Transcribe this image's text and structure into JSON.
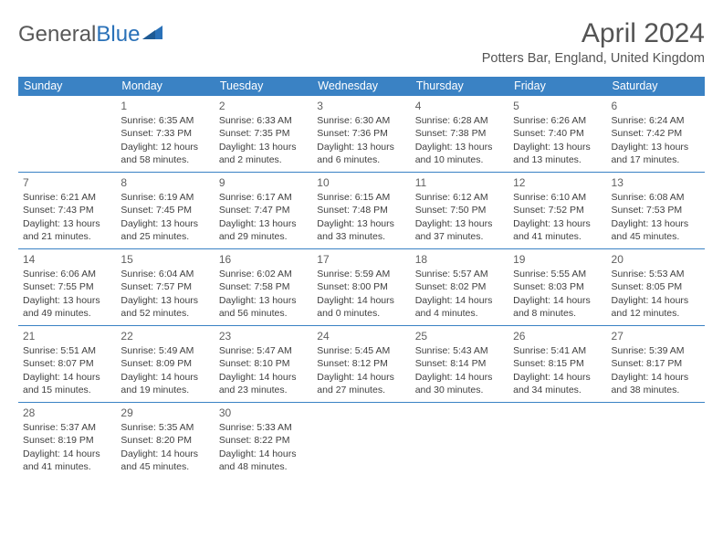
{
  "logo": {
    "text1": "General",
    "text2": "Blue"
  },
  "title": "April 2024",
  "location": "Potters Bar, England, United Kingdom",
  "header_bg": "#3a82c4",
  "header_fg": "#ffffff",
  "border_color": "#3a82c4",
  "text_color": "#404040",
  "title_color": "#545454",
  "days": [
    "Sunday",
    "Monday",
    "Tuesday",
    "Wednesday",
    "Thursday",
    "Friday",
    "Saturday"
  ],
  "weeks": [
    [
      null,
      {
        "n": "1",
        "sr": "Sunrise: 6:35 AM",
        "ss": "Sunset: 7:33 PM",
        "dl": "Daylight: 12 hours and 58 minutes."
      },
      {
        "n": "2",
        "sr": "Sunrise: 6:33 AM",
        "ss": "Sunset: 7:35 PM",
        "dl": "Daylight: 13 hours and 2 minutes."
      },
      {
        "n": "3",
        "sr": "Sunrise: 6:30 AM",
        "ss": "Sunset: 7:36 PM",
        "dl": "Daylight: 13 hours and 6 minutes."
      },
      {
        "n": "4",
        "sr": "Sunrise: 6:28 AM",
        "ss": "Sunset: 7:38 PM",
        "dl": "Daylight: 13 hours and 10 minutes."
      },
      {
        "n": "5",
        "sr": "Sunrise: 6:26 AM",
        "ss": "Sunset: 7:40 PM",
        "dl": "Daylight: 13 hours and 13 minutes."
      },
      {
        "n": "6",
        "sr": "Sunrise: 6:24 AM",
        "ss": "Sunset: 7:42 PM",
        "dl": "Daylight: 13 hours and 17 minutes."
      }
    ],
    [
      {
        "n": "7",
        "sr": "Sunrise: 6:21 AM",
        "ss": "Sunset: 7:43 PM",
        "dl": "Daylight: 13 hours and 21 minutes."
      },
      {
        "n": "8",
        "sr": "Sunrise: 6:19 AM",
        "ss": "Sunset: 7:45 PM",
        "dl": "Daylight: 13 hours and 25 minutes."
      },
      {
        "n": "9",
        "sr": "Sunrise: 6:17 AM",
        "ss": "Sunset: 7:47 PM",
        "dl": "Daylight: 13 hours and 29 minutes."
      },
      {
        "n": "10",
        "sr": "Sunrise: 6:15 AM",
        "ss": "Sunset: 7:48 PM",
        "dl": "Daylight: 13 hours and 33 minutes."
      },
      {
        "n": "11",
        "sr": "Sunrise: 6:12 AM",
        "ss": "Sunset: 7:50 PM",
        "dl": "Daylight: 13 hours and 37 minutes."
      },
      {
        "n": "12",
        "sr": "Sunrise: 6:10 AM",
        "ss": "Sunset: 7:52 PM",
        "dl": "Daylight: 13 hours and 41 minutes."
      },
      {
        "n": "13",
        "sr": "Sunrise: 6:08 AM",
        "ss": "Sunset: 7:53 PM",
        "dl": "Daylight: 13 hours and 45 minutes."
      }
    ],
    [
      {
        "n": "14",
        "sr": "Sunrise: 6:06 AM",
        "ss": "Sunset: 7:55 PM",
        "dl": "Daylight: 13 hours and 49 minutes."
      },
      {
        "n": "15",
        "sr": "Sunrise: 6:04 AM",
        "ss": "Sunset: 7:57 PM",
        "dl": "Daylight: 13 hours and 52 minutes."
      },
      {
        "n": "16",
        "sr": "Sunrise: 6:02 AM",
        "ss": "Sunset: 7:58 PM",
        "dl": "Daylight: 13 hours and 56 minutes."
      },
      {
        "n": "17",
        "sr": "Sunrise: 5:59 AM",
        "ss": "Sunset: 8:00 PM",
        "dl": "Daylight: 14 hours and 0 minutes."
      },
      {
        "n": "18",
        "sr": "Sunrise: 5:57 AM",
        "ss": "Sunset: 8:02 PM",
        "dl": "Daylight: 14 hours and 4 minutes."
      },
      {
        "n": "19",
        "sr": "Sunrise: 5:55 AM",
        "ss": "Sunset: 8:03 PM",
        "dl": "Daylight: 14 hours and 8 minutes."
      },
      {
        "n": "20",
        "sr": "Sunrise: 5:53 AM",
        "ss": "Sunset: 8:05 PM",
        "dl": "Daylight: 14 hours and 12 minutes."
      }
    ],
    [
      {
        "n": "21",
        "sr": "Sunrise: 5:51 AM",
        "ss": "Sunset: 8:07 PM",
        "dl": "Daylight: 14 hours and 15 minutes."
      },
      {
        "n": "22",
        "sr": "Sunrise: 5:49 AM",
        "ss": "Sunset: 8:09 PM",
        "dl": "Daylight: 14 hours and 19 minutes."
      },
      {
        "n": "23",
        "sr": "Sunrise: 5:47 AM",
        "ss": "Sunset: 8:10 PM",
        "dl": "Daylight: 14 hours and 23 minutes."
      },
      {
        "n": "24",
        "sr": "Sunrise: 5:45 AM",
        "ss": "Sunset: 8:12 PM",
        "dl": "Daylight: 14 hours and 27 minutes."
      },
      {
        "n": "25",
        "sr": "Sunrise: 5:43 AM",
        "ss": "Sunset: 8:14 PM",
        "dl": "Daylight: 14 hours and 30 minutes."
      },
      {
        "n": "26",
        "sr": "Sunrise: 5:41 AM",
        "ss": "Sunset: 8:15 PM",
        "dl": "Daylight: 14 hours and 34 minutes."
      },
      {
        "n": "27",
        "sr": "Sunrise: 5:39 AM",
        "ss": "Sunset: 8:17 PM",
        "dl": "Daylight: 14 hours and 38 minutes."
      }
    ],
    [
      {
        "n": "28",
        "sr": "Sunrise: 5:37 AM",
        "ss": "Sunset: 8:19 PM",
        "dl": "Daylight: 14 hours and 41 minutes."
      },
      {
        "n": "29",
        "sr": "Sunrise: 5:35 AM",
        "ss": "Sunset: 8:20 PM",
        "dl": "Daylight: 14 hours and 45 minutes."
      },
      {
        "n": "30",
        "sr": "Sunrise: 5:33 AM",
        "ss": "Sunset: 8:22 PM",
        "dl": "Daylight: 14 hours and 48 minutes."
      },
      null,
      null,
      null,
      null
    ]
  ]
}
